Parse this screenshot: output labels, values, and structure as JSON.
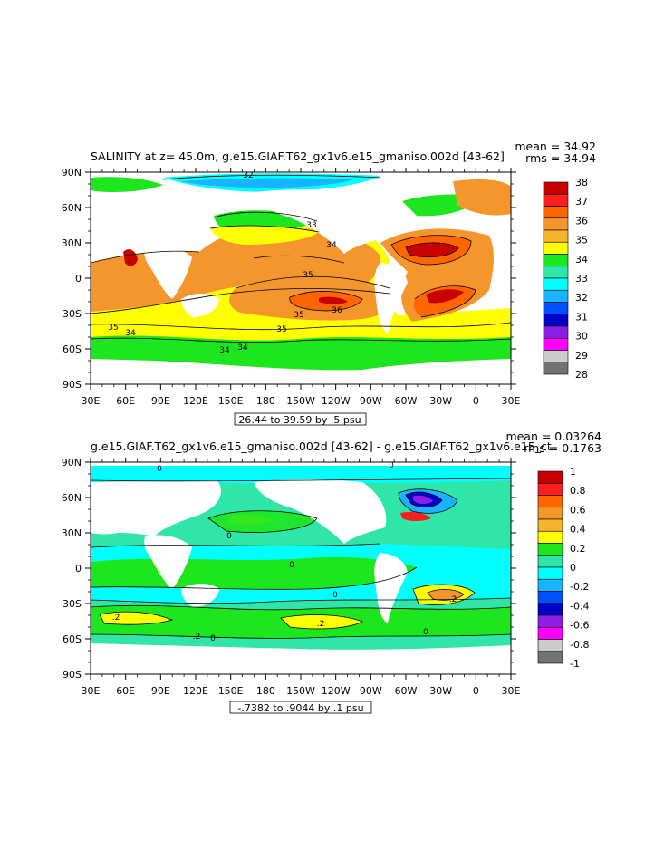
{
  "chart_data": [
    {
      "type": "heatmap",
      "title": "SALINITY at z=  45.0m, g.e15.GIAF.T62_gx1v6.e15_gmaniso.002d [43-62]",
      "stats": {
        "mean": "mean = 34.92",
        "rms": "rms = 34.94"
      },
      "range_label": "26.44 to 39.59 by .5 psu",
      "x_ticks": [
        "30E",
        "60E",
        "90E",
        "120E",
        "150E",
        "180",
        "150W",
        "120W",
        "90W",
        "60W",
        "30W",
        "0",
        "30E"
      ],
      "y_ticks": [
        "90N",
        "60N",
        "30N",
        "0",
        "30S",
        "60S",
        "90S"
      ],
      "colorbar": {
        "labels": [
          "38",
          "37",
          "36",
          "35",
          "34",
          "33",
          "32",
          "31",
          "30",
          "29",
          "28"
        ],
        "colors": [
          "#c80000",
          "#ff1e1e",
          "#ff6600",
          "#f5962d",
          "#f5b42d",
          "#ffff00",
          "#1ee61e",
          "#2fe6a8",
          "#00ffff",
          "#19b4ff",
          "#0050ff",
          "#0000c8",
          "#8c1ee6",
          "#ff00ff",
          "#cccccc",
          "#737373"
        ]
      },
      "contour_labels": [
        "32",
        "33",
        "34",
        "35",
        "35",
        "35",
        "35",
        "36",
        "34",
        "34",
        "34"
      ]
    },
    {
      "type": "heatmap",
      "title": "g.e15.GIAF.T62_gx1v6.e15_gmaniso.002d [43-62] - g.e15.GIAF.T62_gx1v6.e15_ct",
      "stats": {
        "mean": "mean = 0.03264",
        "rms": "rms = 0.1763"
      },
      "range_label": "-.7382 to .9044 by .1 psu",
      "x_ticks": [
        "30E",
        "60E",
        "90E",
        "120E",
        "150E",
        "180",
        "150W",
        "120W",
        "90W",
        "60W",
        "30W",
        "0",
        "30E"
      ],
      "y_ticks": [
        "90N",
        "60N",
        "30N",
        "0",
        "30S",
        "60S",
        "90S"
      ],
      "colorbar": {
        "labels": [
          "1",
          "0.8",
          "0.6",
          "0.4",
          "0.2",
          "0",
          "-0.2",
          "-0.4",
          "-0.6",
          "-0.8",
          "-1"
        ],
        "colors": [
          "#c80000",
          "#ff1e1e",
          "#ff6600",
          "#f5962d",
          "#f5b42d",
          "#ffff00",
          "#1ee61e",
          "#2fe6a8",
          "#00ffff",
          "#19b4ff",
          "#0050ff",
          "#0000c8",
          "#8c1ee6",
          "#ff00ff",
          "#cccccc",
          "#737373"
        ]
      },
      "contour_labels": [
        "0",
        "0",
        "0",
        "0",
        "0",
        ".2",
        ".2",
        ".2",
        ".2",
        "0",
        "0"
      ]
    }
  ]
}
